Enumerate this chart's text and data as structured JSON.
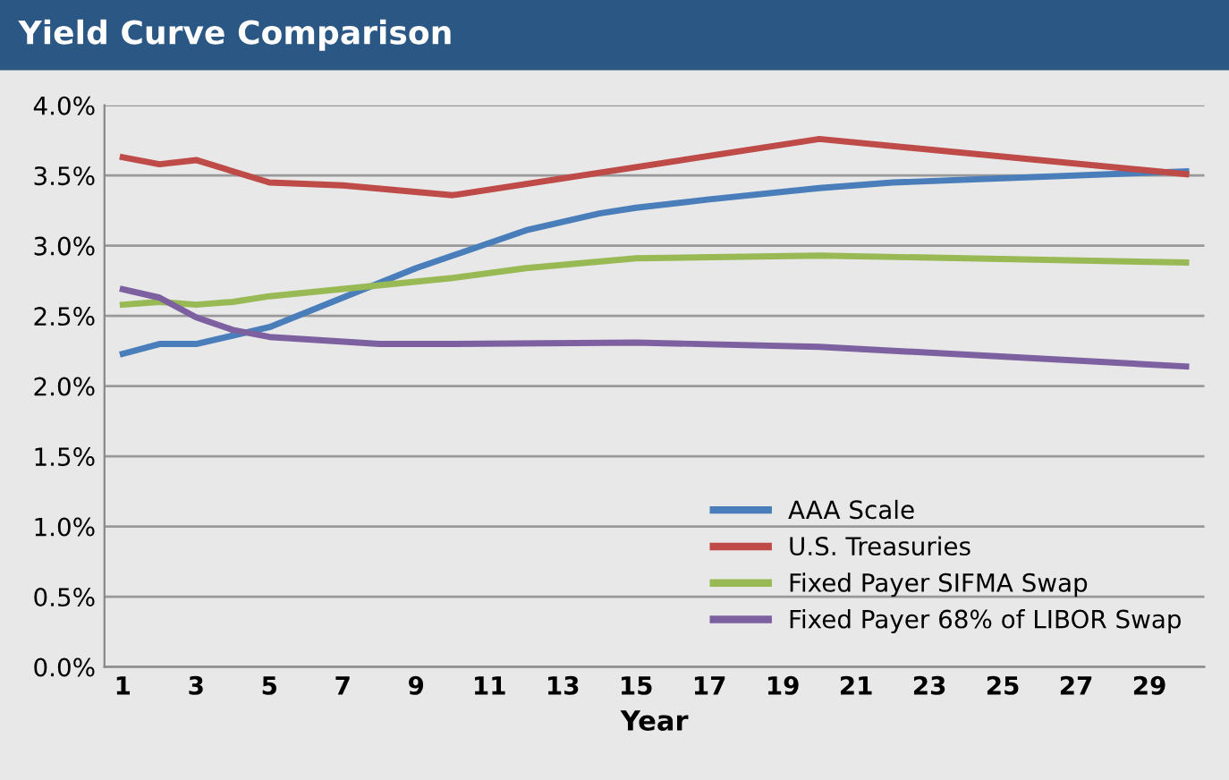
{
  "chart_data": {
    "type": "line",
    "title": "Yield Curve Comparison",
    "xlabel": "Year",
    "xlim": [
      0.5,
      30.5
    ],
    "xticks": [
      1,
      3,
      5,
      7,
      9,
      11,
      13,
      15,
      17,
      19,
      21,
      23,
      25,
      27,
      29
    ],
    "ylim": [
      0,
      4
    ],
    "yticks": [
      {
        "value": 0,
        "label": "0.0%"
      },
      {
        "value": 0.5,
        "label": "0.5%"
      },
      {
        "value": 1,
        "label": "1.0%"
      },
      {
        "value": 1.5,
        "label": "1.5%"
      },
      {
        "value": 2,
        "label": "2.0%"
      },
      {
        "value": 2.5,
        "label": "2.5%"
      },
      {
        "value": 3,
        "label": "3.0%"
      },
      {
        "value": 3.5,
        "label": "3.5%"
      },
      {
        "value": 4,
        "label": "4.0%"
      }
    ],
    "grid": "y",
    "legend": "bottom right",
    "marker": "none",
    "line_style": "solid",
    "series": [
      {
        "name": "AAA Scale",
        "color": "#4a7ebb",
        "x": [
          1,
          2,
          3,
          5,
          7,
          9,
          12,
          14,
          15,
          17,
          20,
          22,
          30
        ],
        "values": [
          2.23,
          2.3,
          2.3,
          2.42,
          2.63,
          2.84,
          3.11,
          3.23,
          3.27,
          3.33,
          3.41,
          3.45,
          3.53
        ]
      },
      {
        "name": "U.S. Treasuries",
        "color": "#be4b48",
        "x": [
          1,
          2,
          3,
          5,
          7,
          10,
          20,
          30
        ],
        "values": [
          3.63,
          3.58,
          3.61,
          3.45,
          3.43,
          3.36,
          3.76,
          3.51
        ]
      },
      {
        "name": "Fixed Payer SIFMA Swap",
        "color": "#98b954",
        "x": [
          1,
          2,
          3,
          4,
          5,
          10,
          12,
          15,
          20,
          30
        ],
        "values": [
          2.58,
          2.6,
          2.58,
          2.6,
          2.64,
          2.77,
          2.84,
          2.91,
          2.93,
          2.88
        ]
      },
      {
        "name": "Fixed Payer 68% of LIBOR Swap",
        "color": "#7d60a0",
        "x": [
          1,
          2,
          3,
          4,
          5,
          8,
          10,
          15,
          20,
          30
        ],
        "values": [
          2.69,
          2.63,
          2.49,
          2.4,
          2.35,
          2.3,
          2.3,
          2.31,
          2.28,
          2.14
        ]
      }
    ]
  }
}
